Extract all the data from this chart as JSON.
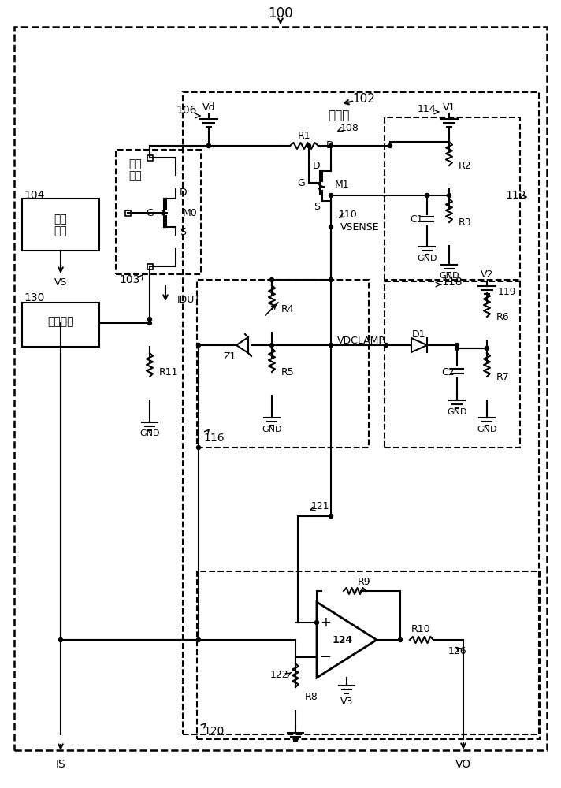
{
  "bg_color": "#ffffff",
  "line_color": "#000000",
  "box_102_label": "衰减器",
  "label_100": "100",
  "label_102": "102",
  "label_103": "103",
  "label_104": "104",
  "label_106": "106",
  "label_108": "108",
  "label_110": "110",
  "label_112": "112",
  "label_114": "114",
  "label_116": "116",
  "label_118": "118",
  "label_119": "119",
  "label_120": "120",
  "label_121": "121",
  "label_122": "122",
  "label_124": "124",
  "label_126": "126",
  "label_130": "130"
}
